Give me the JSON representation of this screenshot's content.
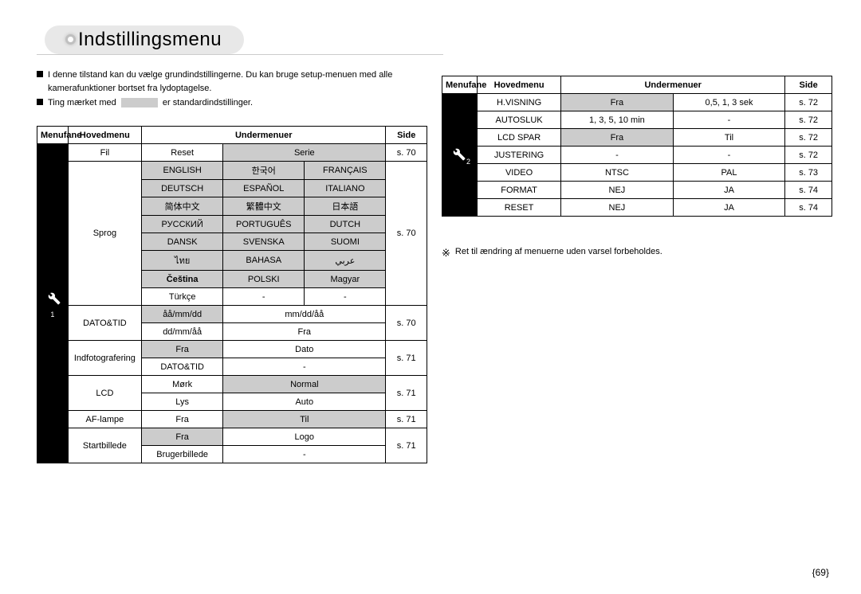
{
  "colors": {
    "background": "#ffffff",
    "text": "#000000",
    "pillBg": "#e8e8e8",
    "greyCell": "#cccccc",
    "border": "#000000",
    "iconCellBg": "#000000",
    "iconCellFg": "#ffffff"
  },
  "typography": {
    "baseFontSize": 11,
    "titleFontSize": 24,
    "fontFamily": "Arial, sans-serif"
  },
  "title": "Indstillingsmenu",
  "intro": {
    "line1": "I denne tilstand kan du vælge grundindstillingerne. Du kan bruge setup-menuen med alle kamerafunktioner bortset fra lydoptagelse.",
    "line2a": "Ting mærket med",
    "line2b": "er standardindstillinger."
  },
  "headers": {
    "tab": "Menufane",
    "main": "Hovedmenu",
    "sub": "Undermenuer",
    "side": "Side"
  },
  "leftTable": {
    "iconSubscript": "1",
    "rows": {
      "fil": {
        "main": "Fil",
        "c1": "Reset",
        "c2": "Serie",
        "side": "s. 70"
      },
      "sprog": {
        "main": "Sprog",
        "grid": [
          [
            "ENGLISH",
            "한국어",
            "FRANÇAIS"
          ],
          [
            "DEUTSCH",
            "ESPAÑOL",
            "ITALIANO"
          ],
          [
            "简体中文",
            "繁體中文",
            "日本語"
          ],
          [
            "РУССКИЙ",
            "PORTUGUÊS",
            "DUTCH"
          ],
          [
            "DANSK",
            "SVENSKA",
            "SUOMI"
          ],
          [
            "ไทย",
            "BAHASA",
            "عربي"
          ],
          [
            "Čeština",
            "POLSKI",
            "Magyar"
          ],
          [
            "Türkçe",
            "-",
            "-"
          ]
        ],
        "side": "s. 70"
      },
      "datotid": {
        "main": "DATO&TID",
        "r1": [
          "åå/mm/dd",
          "mm/dd/åå"
        ],
        "r2": [
          "dd/mm/åå",
          "Fra"
        ],
        "side": "s. 70"
      },
      "indfoto": {
        "main": "Indfotografering",
        "r1": [
          "Fra",
          "Dato"
        ],
        "r2": [
          "DATO&TID",
          "-"
        ],
        "side": "s. 71"
      },
      "lcd": {
        "main": "LCD",
        "r1": [
          "Mørk",
          "Normal"
        ],
        "r2": [
          "Lys",
          "Auto"
        ],
        "side": "s. 71"
      },
      "aflampe": {
        "main": "AF-lampe",
        "c1": "Fra",
        "c2": "Til",
        "side": "s. 71"
      },
      "startbillede": {
        "main": "Startbillede",
        "r1": [
          "Fra",
          "Logo"
        ],
        "r2": [
          "Brugerbillede",
          "-"
        ],
        "side": "s. 71"
      }
    }
  },
  "rightTable": {
    "iconSubscript": "2",
    "rows": [
      {
        "main": "H.VISNING",
        "c1": "Fra",
        "c1grey": true,
        "c2": "0,5, 1, 3 sek",
        "c2grey": false,
        "side": "s. 72"
      },
      {
        "main": "AUTOSLUK",
        "c1": "1, 3, 5, 10 min",
        "c1grey": false,
        "c2": "-",
        "c2grey": false,
        "side": "s. 72"
      },
      {
        "main": "LCD SPAR",
        "c1": "Fra",
        "c1grey": true,
        "c2": "Til",
        "c2grey": false,
        "side": "s. 72"
      },
      {
        "main": "JUSTERING",
        "c1": "-",
        "c1grey": false,
        "c2": "-",
        "c2grey": false,
        "side": "s. 72"
      },
      {
        "main": "VIDEO",
        "c1": "NTSC",
        "c1grey": false,
        "c2": "PAL",
        "c2grey": false,
        "side": "s. 73"
      },
      {
        "main": "FORMAT",
        "c1": "NEJ",
        "c1grey": false,
        "c2": "JA",
        "c2grey": false,
        "side": "s. 74"
      },
      {
        "main": "RESET",
        "c1": "NEJ",
        "c1grey": false,
        "c2": "JA",
        "c2grey": false,
        "side": "s. 74"
      }
    ]
  },
  "noteRight": "Ret til ændring af menuerne uden varsel forbeholdes.",
  "pageNumber": "69"
}
